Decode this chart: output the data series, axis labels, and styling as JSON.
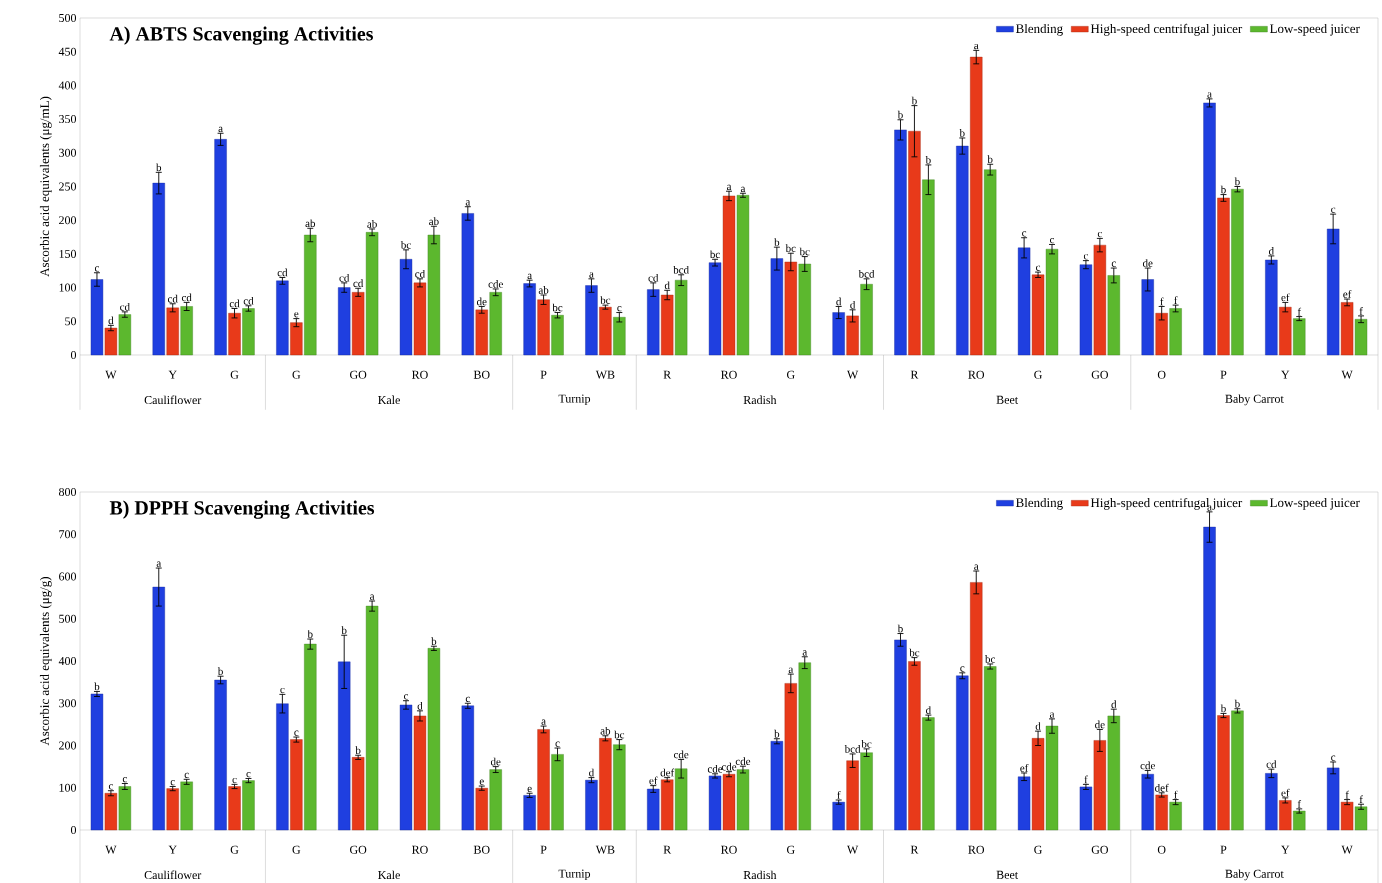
{
  "chart_data": [
    {
      "type": "bar",
      "title": "A) ABTS Scavenging Activities",
      "ylabel": "Ascorbic acid equivalents (μg/mL)",
      "categories": [
        "W",
        "Y",
        "G",
        "G",
        "GO",
        "RO",
        "BO",
        "P",
        "WB",
        "R",
        "RO",
        "G",
        "W",
        "R",
        "RO",
        "G",
        "GO",
        "O",
        "P",
        "Y",
        "W"
      ],
      "annotations": [
        "Cauliflower",
        "Kale",
        "Turnip",
        "Radish",
        "Beet",
        "Baby Carrot"
      ],
      "series": [
        {
          "name": "Blending",
          "color": "#1f3fe0",
          "values": [
            112,
            255,
            320,
            110,
            100,
            142,
            210,
            106,
            103,
            97,
            137,
            143,
            63,
            334,
            310,
            159,
            134,
            112,
            374,
            141,
            187
          ],
          "errors": [
            10,
            16,
            9,
            5,
            7,
            14,
            10,
            5,
            10,
            10,
            5,
            17,
            9,
            15,
            12,
            15,
            6,
            17,
            6,
            6,
            22
          ],
          "value_labels": [
            "c",
            "b",
            "a",
            "cd",
            "cd",
            "bc",
            "a",
            "a",
            "a",
            "cd",
            "bc",
            "b",
            "d",
            "b",
            "b",
            "c",
            "c",
            "de",
            "a",
            "d",
            "c"
          ]
        },
        {
          "name": "High-speed centrifugal juicer",
          "color": "#e83a1a",
          "values": [
            40,
            70,
            62,
            48,
            93,
            107,
            67,
            82,
            71,
            89,
            236,
            138,
            58,
            332,
            442,
            119,
            163,
            62,
            233,
            71,
            78
          ],
          "errors": [
            4,
            6,
            7,
            6,
            6,
            6,
            5,
            7,
            3,
            7,
            7,
            13,
            9,
            38,
            10,
            4,
            10,
            10,
            5,
            7,
            5
          ],
          "value_labels": [
            "d",
            "cd",
            "cd",
            "e",
            "cd",
            "cd",
            "de",
            "ab",
            "bc",
            "d",
            "a",
            "bc",
            "d",
            "b",
            "a",
            "c",
            "c",
            "f",
            "b",
            "ef",
            "ef"
          ]
        },
        {
          "name": "Low-speed juicer",
          "color": "#5cb82e",
          "values": [
            60,
            72,
            69,
            178,
            182,
            178,
            93,
            59,
            56,
            111,
            237,
            135,
            105,
            260,
            275,
            157,
            118,
            69,
            246,
            54,
            53
          ],
          "errors": [
            4,
            6,
            4,
            10,
            5,
            13,
            5,
            4,
            7,
            8,
            3,
            11,
            8,
            22,
            8,
            7,
            11,
            5,
            4,
            3,
            5
          ],
          "value_labels": [
            "cd",
            "cd",
            "cd",
            "ab",
            "ab",
            "ab",
            "cde",
            "bc",
            "c",
            "bcd",
            "a",
            "bc",
            "bcd",
            "b",
            "b",
            "c",
            "c",
            "f",
            "b",
            "f",
            "f"
          ]
        }
      ],
      "ylim": [
        0,
        500
      ],
      "yticks": [
        0,
        50,
        100,
        150,
        200,
        250,
        300,
        350,
        400,
        450,
        500
      ],
      "legend": "top right",
      "grid": false
    },
    {
      "type": "bar",
      "title": "B) DPPH Scavenging Activities",
      "ylabel": "Ascorbic acid equivalents (μg/g)",
      "categories": [
        "W",
        "Y",
        "G",
        "G",
        "GO",
        "RO",
        "BO",
        "P",
        "WB",
        "R",
        "RO",
        "G",
        "W",
        "R",
        "RO",
        "G",
        "GO",
        "O",
        "P",
        "Y",
        "W"
      ],
      "annotations": [
        "Cauliflower",
        "Kale",
        "Turnip",
        "Radish",
        "Beet",
        "Baby Carrot"
      ],
      "series": [
        {
          "name": "Blending",
          "color": "#1f3fe0",
          "values": [
            322,
            575,
            355,
            299,
            398,
            296,
            294,
            82,
            118,
            97,
            128,
            210,
            66,
            450,
            365,
            126,
            102,
            132,
            717,
            134,
            147
          ],
          "errors": [
            6,
            45,
            9,
            22,
            63,
            10,
            6,
            5,
            6,
            8,
            5,
            6,
            5,
            15,
            7,
            9,
            6,
            9,
            36,
            10,
            14
          ],
          "value_labels": [
            "b",
            "a",
            "b",
            "c",
            "b",
            "c",
            "c",
            "e",
            "d",
            "ef",
            "cde",
            "b",
            "f",
            "b",
            "c",
            "ef",
            "f",
            "cde",
            "a",
            "cd",
            "c"
          ]
        },
        {
          "name": "High-speed centrifugal juicer",
          "color": "#e83a1a",
          "values": [
            87,
            98,
            103,
            214,
            172,
            270,
            99,
            238,
            217,
            119,
            132,
            347,
            164,
            399,
            586,
            217,
            212,
            83,
            271,
            70,
            66
          ],
          "errors": [
            6,
            5,
            5,
            6,
            5,
            12,
            5,
            8,
            6,
            5,
            6,
            22,
            16,
            9,
            27,
            17,
            26,
            5,
            5,
            6,
            6
          ],
          "value_labels": [
            "c",
            "c",
            "c",
            "c",
            "b",
            "d",
            "e",
            "a",
            "ab",
            "def",
            "cde",
            "a",
            "bcd",
            "bc",
            "a",
            "d",
            "de",
            "def",
            "b",
            "ef",
            "f"
          ]
        },
        {
          "name": "Low-speed juicer",
          "color": "#5cb82e",
          "values": [
            103,
            114,
            117,
            440,
            530,
            430,
            143,
            179,
            202,
            145,
            143,
            396,
            183,
            266,
            387,
            246,
            270,
            66,
            282,
            45,
            55
          ],
          "errors": [
            7,
            6,
            5,
            12,
            12,
            5,
            7,
            15,
            12,
            22,
            8,
            14,
            9,
            6,
            6,
            17,
            16,
            6,
            5,
            5,
            6
          ],
          "value_labels": [
            "c",
            "c",
            "c",
            "b",
            "a",
            "b",
            "de",
            "c",
            "bc",
            "cde",
            "cde",
            "a",
            "bc",
            "d",
            "bc",
            "a",
            "d",
            "f",
            "b",
            "f",
            "f"
          ]
        }
      ],
      "ylim": [
        0,
        800
      ],
      "yticks": [
        0,
        100,
        200,
        300,
        400,
        500,
        600,
        700,
        800
      ],
      "legend": "top right",
      "grid": false
    }
  ]
}
